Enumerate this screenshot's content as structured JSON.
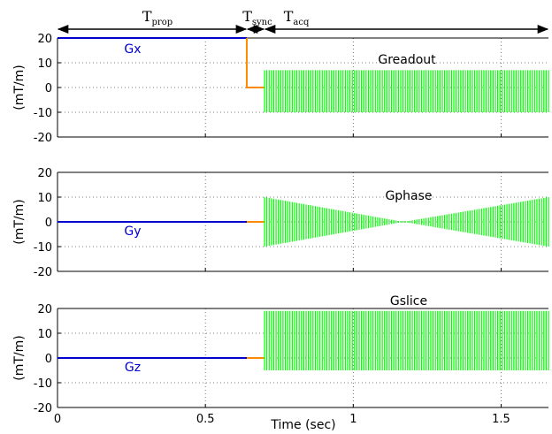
{
  "chart_data": {
    "type": "line",
    "x_axis": {
      "label": "Time (sec)",
      "range": [
        0,
        1.66
      ],
      "ticks": [
        0,
        0.5,
        1,
        1.5
      ],
      "tick_labels": [
        "0",
        "0.5",
        "1",
        "1.5"
      ]
    },
    "timing_annotations": [
      {
        "main": "T",
        "sub": "prop",
        "start": 0,
        "end": 0.64
      },
      {
        "main": "T",
        "sub": "sync",
        "start": 0.64,
        "end": 0.7
      },
      {
        "main": "T",
        "sub": "acq",
        "start": 0.7,
        "end": 1.66
      }
    ],
    "panels": [
      {
        "ylabel": "(mT/m)",
        "ylim": [
          -20,
          20
        ],
        "yticks": [
          20,
          10,
          0,
          -10,
          -20
        ],
        "ytick_labels": [
          "20",
          "10",
          "0",
          "-10",
          "-20"
        ],
        "grid": true,
        "series": [
          {
            "name": "Gx",
            "color": "#0000cc",
            "type": "segment",
            "x": [
              0,
              0.64
            ],
            "y": [
              20,
              20
            ]
          },
          {
            "color": "#ff8c00",
            "type": "segment",
            "x": [
              0.64,
              0.64,
              0.7
            ],
            "y": [
              20,
              0,
              0
            ]
          },
          {
            "name": "Greadout",
            "color": "#00ff00",
            "type": "oscillation",
            "x_start": 0.7,
            "x_end": 1.66,
            "positive": 7,
            "negative": -10,
            "envelope": "constant"
          }
        ]
      },
      {
        "ylabel": "(mT/m)",
        "ylim": [
          -20,
          20
        ],
        "yticks": [
          20,
          10,
          0,
          -10,
          -20
        ],
        "ytick_labels": [
          "20",
          "10",
          "0",
          "-10",
          "-20"
        ],
        "grid": true,
        "series": [
          {
            "name": "Gy",
            "color": "#0000cc",
            "type": "segment",
            "x": [
              0,
              0.64
            ],
            "y": [
              0,
              0
            ]
          },
          {
            "color": "#ff8c00",
            "type": "segment",
            "x": [
              0.64,
              0.7
            ],
            "y": [
              0,
              0
            ]
          },
          {
            "name": "Gphase",
            "color": "#00ff00",
            "type": "oscillation",
            "x_start": 0.7,
            "x_end": 1.66,
            "amplitude": 10,
            "envelope": "v-shape",
            "null_at": 1.17
          }
        ]
      },
      {
        "ylabel": "(mT/m)",
        "ylim": [
          -20,
          20
        ],
        "yticks": [
          20,
          10,
          0,
          -10,
          -20
        ],
        "ytick_labels": [
          "20",
          "10",
          "0",
          "-10",
          "-20"
        ],
        "grid": true,
        "series": [
          {
            "name": "Gz",
            "color": "#0000cc",
            "type": "segment",
            "x": [
              0,
              0.64
            ],
            "y": [
              0,
              0
            ]
          },
          {
            "color": "#ff8c00",
            "type": "segment",
            "x": [
              0.64,
              0.7
            ],
            "y": [
              0,
              0
            ]
          },
          {
            "name": "Gslice",
            "color": "#00ff00",
            "type": "oscillation",
            "x_start": 0.7,
            "x_end": 1.66,
            "positive": 19,
            "negative": -5,
            "envelope": "constant"
          }
        ]
      }
    ]
  }
}
